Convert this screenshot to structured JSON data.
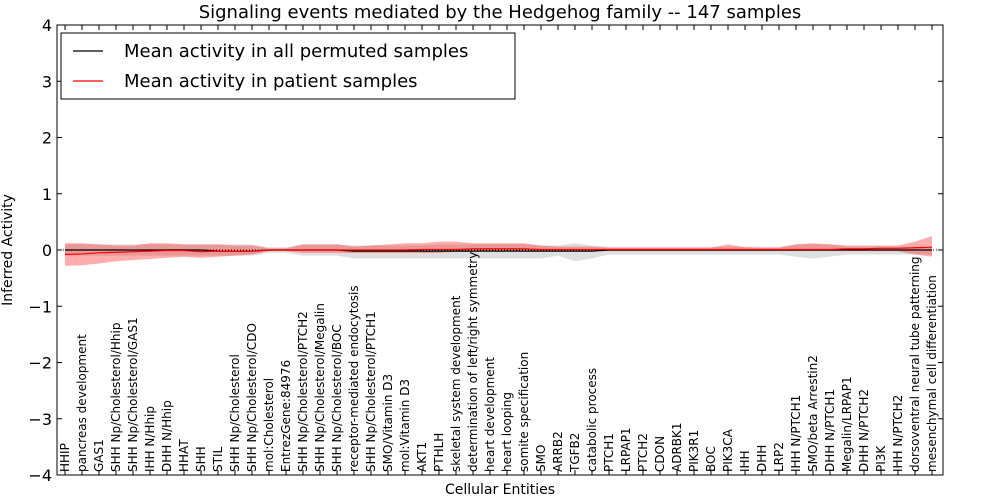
{
  "chart_data": {
    "type": "line",
    "title": "Signaling events mediated by the Hedgehog family -- 147 samples",
    "xlabel": "Cellular Entities",
    "ylabel": "Inferred Activity",
    "ylim": [
      -4,
      4
    ],
    "yticks": [
      4,
      3,
      2,
      1,
      0,
      -1,
      -2,
      -3,
      -4
    ],
    "ytick_labels": [
      "4",
      "3",
      "2",
      "1",
      "0",
      "−1",
      "−2",
      "−3",
      "−4"
    ],
    "legend": {
      "placement": "top-left",
      "entries": [
        {
          "label": "Mean activity in all permuted samples",
          "color": "#000000"
        },
        {
          "label": "Mean activity in patient samples",
          "color": "#ff0000"
        }
      ]
    },
    "categories": [
      "HHIP",
      "pancreas development",
      "GAS1",
      "SHH Np/Cholesterol/Hhip",
      "SHH Np/Cholesterol/GAS1",
      "IHH N/Hhip",
      "DHH N/Hhip",
      "HHAT",
      "SHH",
      "STIL",
      "SHH Np/Cholesterol",
      "SHH Np/Cholesterol/CDO",
      "mol:Cholesterol",
      "EntrezGene:84976",
      "SHH Np/Cholesterol/PTCH2",
      "SHH Np/Cholesterol/Megalin",
      "SHH Np/Cholesterol/BOC",
      "receptor-mediated endocytosis",
      "SHH Np/Cholesterol/PTCH1",
      "SMO/Vitamin D3",
      "mol:Vitamin D3",
      "AKT1",
      "PTHLH",
      "skeletal system development",
      "determination of left/right symmetry",
      "heart development",
      "heart looping",
      "somite specification",
      "SMO",
      "ARRB2",
      "TGFB2",
      "catabolic process",
      "PTCH1",
      "LRPAP1",
      "PTCH2",
      "CDON",
      "ADRBK1",
      "PIK3R1",
      "BOC",
      "PIK3CA",
      "IHH",
      "DHH",
      "LRP2",
      "IHH N/PTCH1",
      "SMO/beta Arrestin2",
      "DHH N/PTCH1",
      "Megalin/LRPAP1",
      "DHH N/PTCH2",
      "PI3K",
      "IHH N/PTCH2",
      "dorsoventral neural tube patterning",
      "mesenchymal cell differentiation"
    ],
    "series": [
      {
        "name": "Mean activity in all permuted samples",
        "color": "#000000",
        "values": [
          0.0,
          0.0,
          0.0,
          0.0,
          0.0,
          0.0,
          0.0,
          0.0,
          0.0,
          -0.02,
          -0.02,
          -0.02,
          0.0,
          0.0,
          0.0,
          0.0,
          0.0,
          -0.02,
          -0.02,
          -0.02,
          -0.02,
          -0.02,
          -0.02,
          -0.02,
          -0.02,
          -0.02,
          -0.02,
          -0.02,
          -0.02,
          -0.02,
          -0.02,
          -0.02,
          0.0,
          0.0,
          0.0,
          0.0,
          0.0,
          0.0,
          0.0,
          0.0,
          0.0,
          0.0,
          0.0,
          0.0,
          0.0,
          0.0,
          0.0,
          0.0,
          0.0,
          0.0,
          0.0,
          0.0
        ],
        "band_lower": [
          -0.1,
          -0.1,
          -0.1,
          -0.1,
          -0.1,
          -0.1,
          -0.1,
          -0.1,
          -0.1,
          -0.1,
          -0.1,
          -0.1,
          -0.05,
          -0.05,
          -0.1,
          -0.1,
          -0.1,
          -0.15,
          -0.15,
          -0.15,
          -0.15,
          -0.15,
          -0.15,
          -0.15,
          -0.15,
          -0.15,
          -0.15,
          -0.15,
          -0.15,
          -0.1,
          -0.2,
          -0.15,
          -0.08,
          -0.08,
          -0.08,
          -0.08,
          -0.08,
          -0.08,
          -0.08,
          -0.08,
          -0.08,
          -0.08,
          -0.08,
          -0.12,
          -0.15,
          -0.12,
          -0.08,
          -0.08,
          -0.08,
          -0.08,
          -0.08,
          -0.08
        ],
        "band_upper": [
          0.1,
          0.1,
          0.1,
          0.1,
          0.1,
          0.1,
          0.1,
          0.1,
          0.1,
          0.1,
          0.1,
          0.1,
          0.05,
          0.05,
          0.1,
          0.1,
          0.1,
          0.08,
          0.08,
          0.08,
          0.08,
          0.08,
          0.1,
          0.1,
          0.1,
          0.1,
          0.1,
          0.1,
          0.08,
          0.08,
          0.12,
          0.08,
          0.06,
          0.06,
          0.06,
          0.06,
          0.06,
          0.06,
          0.06,
          0.06,
          0.06,
          0.06,
          0.06,
          0.1,
          0.1,
          0.1,
          0.06,
          0.06,
          0.06,
          0.06,
          0.06,
          0.06
        ]
      },
      {
        "name": "Mean activity in patient samples",
        "color": "#ff0000",
        "values": [
          -0.08,
          -0.07,
          -0.05,
          -0.04,
          -0.03,
          -0.02,
          -0.01,
          -0.01,
          -0.03,
          -0.02,
          -0.02,
          -0.02,
          0.0,
          0.0,
          0.0,
          0.0,
          0.0,
          0.0,
          0.0,
          0.0,
          0.0,
          0.01,
          0.01,
          0.01,
          0.02,
          0.02,
          0.02,
          0.02,
          0.01,
          0.01,
          0.01,
          0.01,
          0.01,
          0.01,
          0.01,
          0.01,
          0.01,
          0.01,
          0.01,
          0.01,
          0.01,
          0.01,
          0.01,
          0.01,
          0.01,
          0.01,
          0.02,
          0.02,
          0.03,
          0.03,
          0.04,
          0.05
        ],
        "band_lower": [
          -0.28,
          -0.27,
          -0.24,
          -0.2,
          -0.18,
          -0.16,
          -0.14,
          -0.12,
          -0.14,
          -0.12,
          -0.1,
          -0.08,
          -0.02,
          -0.02,
          -0.05,
          -0.05,
          -0.05,
          -0.05,
          -0.05,
          -0.05,
          -0.05,
          -0.05,
          -0.05,
          -0.03,
          -0.03,
          -0.02,
          -0.02,
          -0.02,
          -0.02,
          -0.02,
          -0.02,
          -0.02,
          -0.02,
          -0.02,
          -0.02,
          -0.02,
          -0.02,
          -0.02,
          -0.02,
          -0.02,
          -0.02,
          -0.02,
          -0.02,
          -0.02,
          -0.02,
          -0.02,
          -0.02,
          -0.02,
          -0.02,
          -0.02,
          -0.08,
          -0.12
        ],
        "band_upper": [
          0.12,
          0.12,
          0.1,
          0.08,
          0.08,
          0.12,
          0.12,
          0.1,
          0.1,
          0.1,
          0.08,
          0.08,
          0.03,
          0.03,
          0.1,
          0.1,
          0.1,
          0.06,
          0.08,
          0.1,
          0.12,
          0.12,
          0.15,
          0.15,
          0.12,
          0.12,
          0.12,
          0.12,
          0.08,
          0.06,
          0.06,
          0.06,
          0.04,
          0.04,
          0.04,
          0.04,
          0.04,
          0.04,
          0.04,
          0.1,
          0.05,
          0.04,
          0.04,
          0.1,
          0.12,
          0.1,
          0.08,
          0.08,
          0.08,
          0.08,
          0.15,
          0.25
        ]
      }
    ]
  }
}
